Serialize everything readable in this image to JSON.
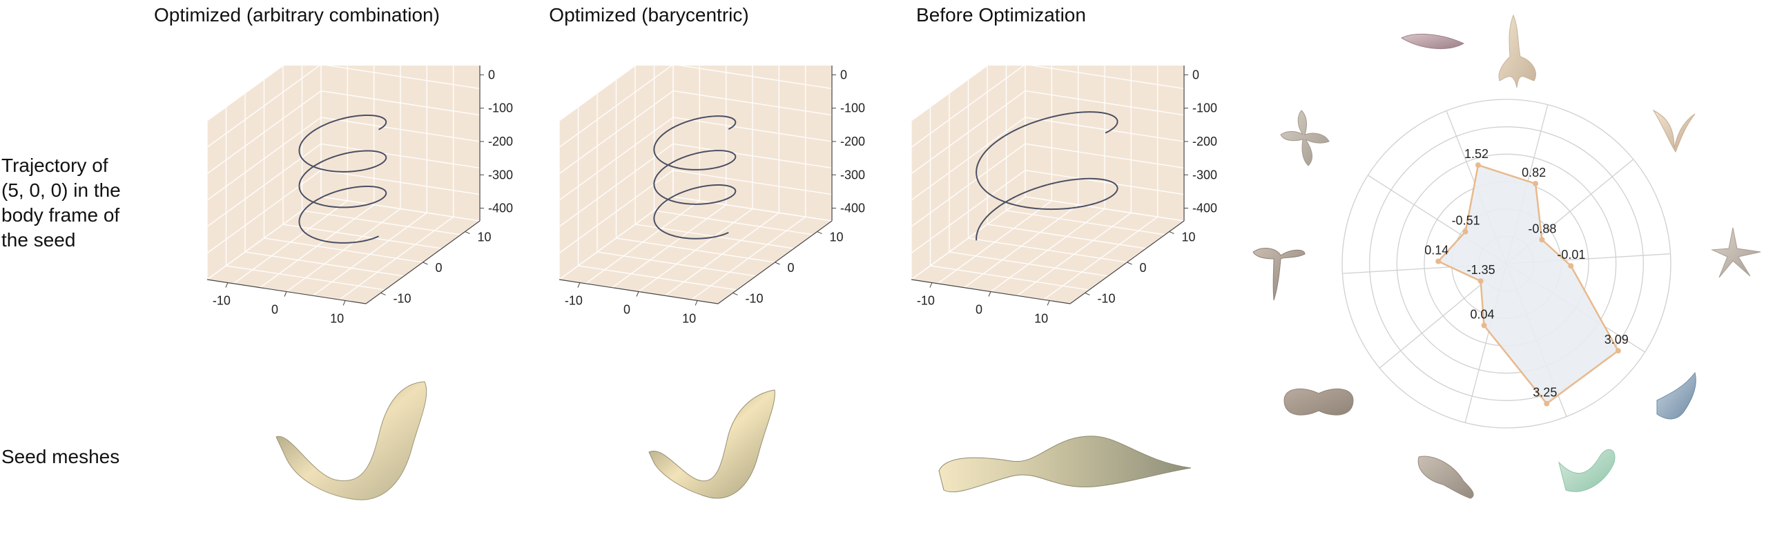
{
  "columns": [
    {
      "title": "Optimized (arbitrary combination)"
    },
    {
      "title": "Optimized (barycentric)"
    },
    {
      "title": "Before Optimization"
    }
  ],
  "row_labels": {
    "trajectory": [
      "Trajectory of",
      "(5, 0, 0) in the",
      "body frame of",
      "the seed"
    ],
    "meshes": "Seed meshes"
  },
  "axis_ticks": {
    "z": [
      "0",
      "-100",
      "-200",
      "-300",
      "-400"
    ],
    "x": [
      "-10",
      "0",
      "10"
    ],
    "y": [
      "10",
      "0",
      "-10"
    ]
  },
  "colors": {
    "pane": "#f3e5d6",
    "grid": "#ffffff",
    "curve": "#4a4f63",
    "radar_fill": "#e9edf2",
    "radar_line": "#e8b98d",
    "radar_grid": "#d0d0d0"
  },
  "chart_data": [
    {
      "type": "line",
      "subtype": "3d-helix",
      "title": "Optimized (arbitrary combination)",
      "zlim": [
        -400,
        0
      ],
      "xlim": [
        -15,
        15
      ],
      "ylim": [
        -15,
        15
      ],
      "turns": 3,
      "radius": 8,
      "z_range": [
        -60,
        -380
      ]
    },
    {
      "type": "line",
      "subtype": "3d-helix",
      "title": "Optimized (barycentric)",
      "zlim": [
        -400,
        0
      ],
      "xlim": [
        -15,
        15
      ],
      "ylim": [
        -15,
        15
      ],
      "turns": 3,
      "radius": 7.5,
      "z_range": [
        -60,
        -370
      ]
    },
    {
      "type": "line",
      "subtype": "3d-helix",
      "title": "Before Optimization",
      "zlim": [
        -400,
        0
      ],
      "xlim": [
        -15,
        15
      ],
      "ylim": [
        -15,
        15
      ],
      "turns": 1.6,
      "radius": 13,
      "z_range": [
        -60,
        -380
      ]
    },
    {
      "type": "radar",
      "values": [
        1.52,
        0.82,
        -0.88,
        -0.01,
        3.09,
        3.25,
        0.04,
        -1.35,
        0.14,
        -0.51
      ],
      "value_labels": [
        "1.52",
        "0.82",
        "-0.88",
        "-0.01",
        "3.09",
        "3.25",
        "0.04",
        "-1.35",
        "0.14",
        "-0.51"
      ],
      "rlim": [
        -2.6,
        4.0
      ],
      "grid_rings": 6,
      "spokes": 10
    }
  ],
  "seed_icons": [
    "pink-seed-icon",
    "tall-seed-icon",
    "curved-seed-icon",
    "star-seed-icon",
    "blue-seed-icon",
    "green-seed-icon",
    "oval-seed-icon",
    "round-seed-icon",
    "twin-seed-icon",
    "tri-seed-icon"
  ]
}
